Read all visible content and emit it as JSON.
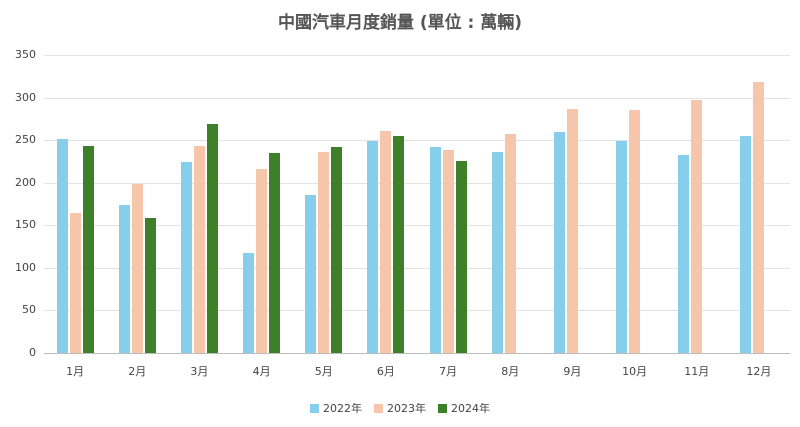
{
  "chart_data": {
    "type": "bar",
    "title": "中國汽車月度銷量 (單位 : 萬輛)",
    "xlabel": "",
    "ylabel": "",
    "ylim": [
      0,
      350
    ],
    "yticks": [
      0,
      50,
      100,
      150,
      200,
      250,
      300,
      350
    ],
    "grid": true,
    "legend_position": "bottom",
    "categories": [
      "1月",
      "2月",
      "3月",
      "4月",
      "5月",
      "6月",
      "7月",
      "8月",
      "9月",
      "10月",
      "11月",
      "12月"
    ],
    "series": [
      {
        "name": "2022年",
        "color": "#87CEEB",
        "values": [
          251,
          174,
          224,
          117,
          186,
          249,
          242,
          236,
          259,
          249,
          232,
          255
        ]
      },
      {
        "name": "2023年",
        "color": "#F5C6AA",
        "values": [
          164,
          198,
          243,
          216,
          236,
          261,
          238,
          257,
          286,
          285,
          297,
          318
        ]
      },
      {
        "name": "2024年",
        "color": "#3E7F2A",
        "values": [
          243,
          158,
          269,
          235,
          242,
          255,
          225,
          null,
          null,
          null,
          null,
          null
        ]
      }
    ]
  }
}
